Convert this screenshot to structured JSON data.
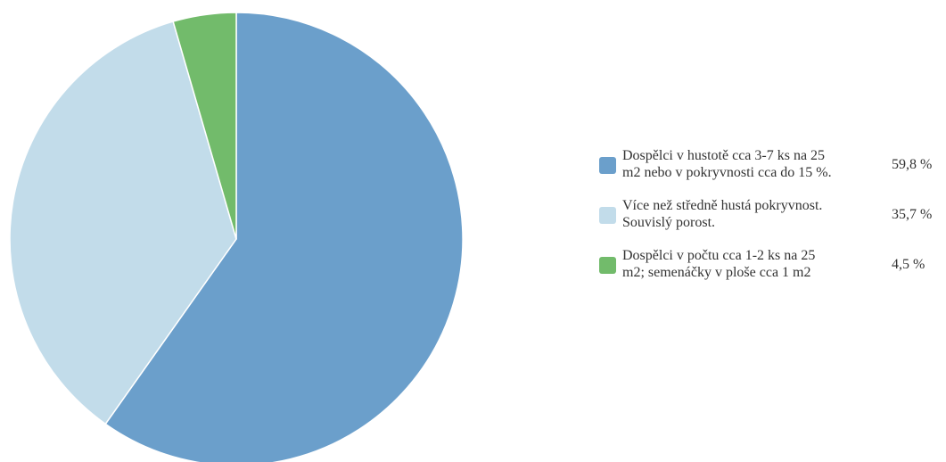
{
  "chart_data": {
    "type": "pie",
    "title": "",
    "slices": [
      {
        "label": "Dospělci v hustotě cca 3-7 ks na 25\nm2 nebo v pokryvnosti cca do 15 %.",
        "value": 59.8,
        "value_label": "59,8 %",
        "color": "#6b9fcb"
      },
      {
        "label": "Více než středně hustá pokryvnost.\nSouvislý porost.",
        "value": 35.7,
        "value_label": "35,7 %",
        "color": "#c2dcea"
      },
      {
        "label": "Dospělci v počtu cca 1-2 ks na 25\nm2; semenáčky v ploše cca 1 m2",
        "value": 4.5,
        "value_label": "4,5 %",
        "color": "#72bb6b"
      }
    ],
    "legend": "right",
    "start_angle": "top",
    "direction": "clockwise"
  }
}
